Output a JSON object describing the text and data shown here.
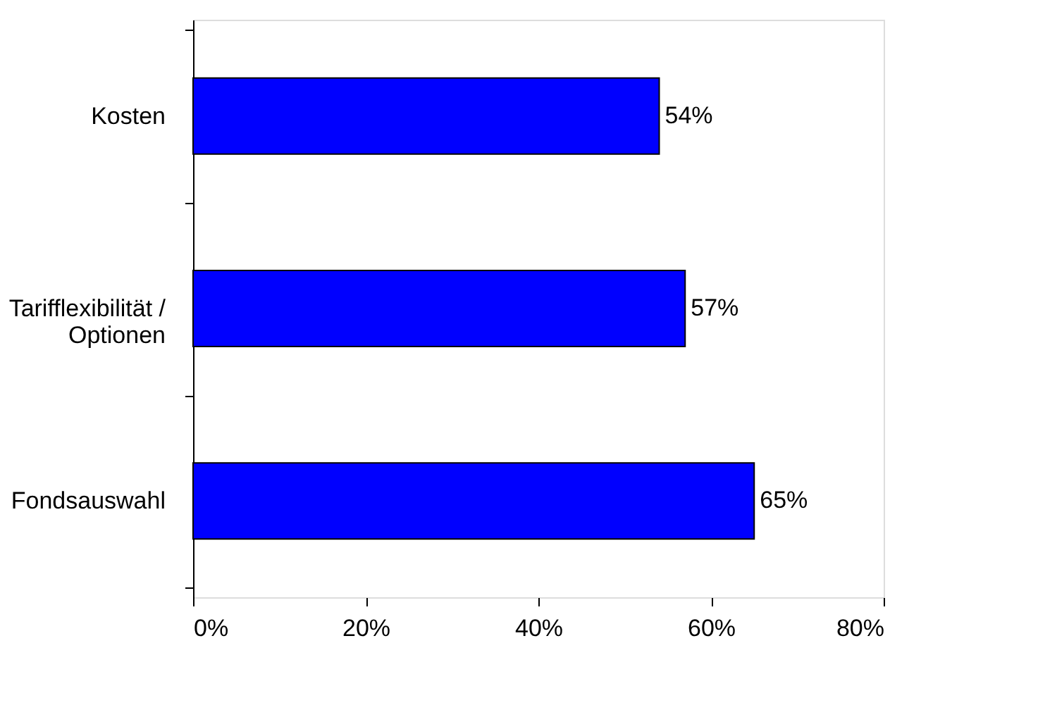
{
  "chart_data": {
    "type": "bar",
    "orientation": "horizontal",
    "categories": [
      "Kosten",
      "Tarifflexibilität / Optionen",
      "Fondsauswahl"
    ],
    "values": [
      54,
      57,
      65
    ],
    "color": "#0000ff",
    "value_labels": [
      "54%",
      "57%",
      "65%"
    ],
    "xlim": [
      0,
      80
    ],
    "xticks": [
      {
        "value": 0,
        "label": "0%"
      },
      {
        "value": 20,
        "label": "20%"
      },
      {
        "value": 40,
        "label": "40%"
      },
      {
        "value": 60,
        "label": "60%"
      },
      {
        "value": 80,
        "label": "80%"
      }
    ],
    "grid": false
  }
}
